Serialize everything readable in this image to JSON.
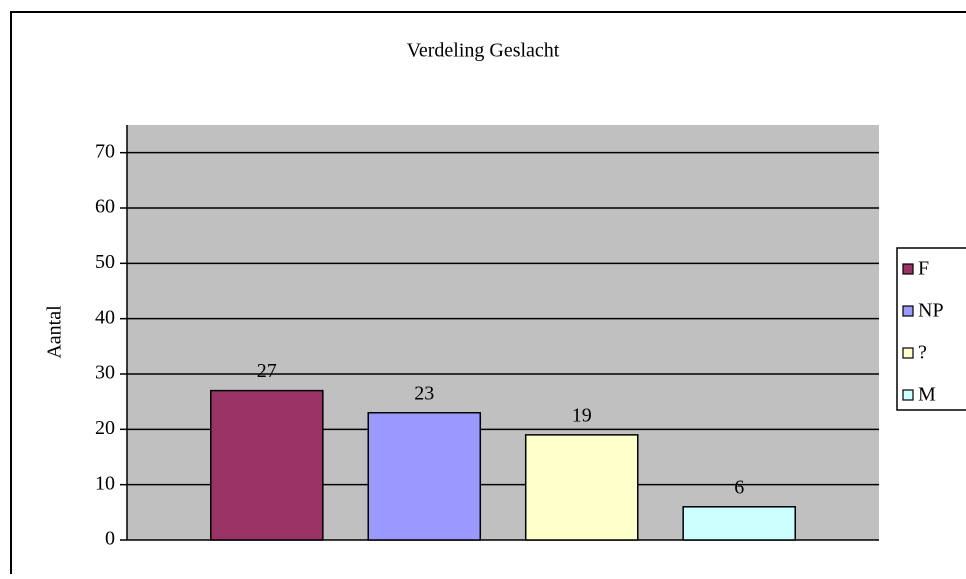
{
  "chart_data": {
    "type": "bar",
    "title": "Verdeling Geslacht",
    "y_label": "Aantal",
    "series": [
      {
        "name": "F",
        "color": "#993366",
        "values": [
          27
        ]
      },
      {
        "name": "NP",
        "color": "#9999ff",
        "values": [
          23
        ]
      },
      {
        "name": "?",
        "color": "#ffffcc",
        "values": [
          19
        ]
      },
      {
        "name": "M",
        "color": "#ccffff",
        "values": [
          6
        ]
      }
    ],
    "ylim": [
      0,
      75
    ],
    "yticks": [
      0,
      10,
      20,
      30,
      40,
      50,
      60,
      70
    ],
    "grid": true,
    "legend": "right"
  }
}
